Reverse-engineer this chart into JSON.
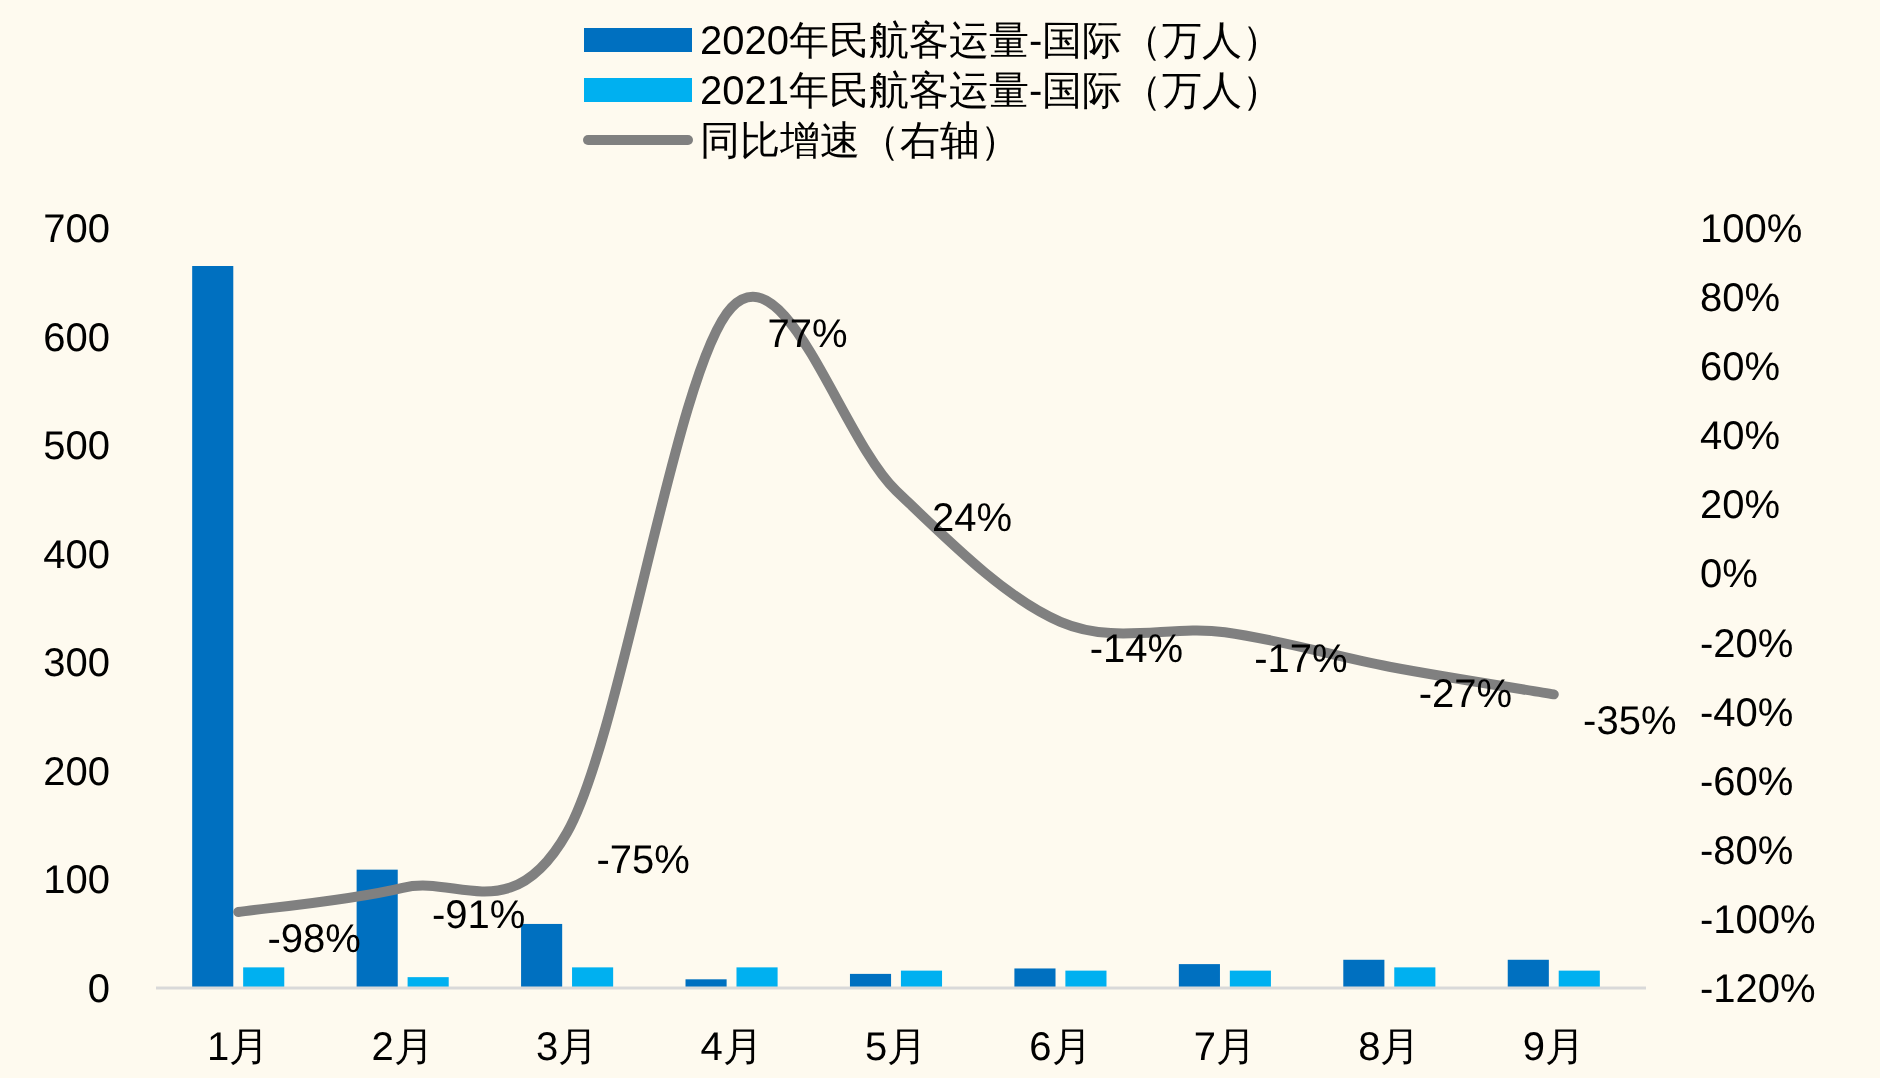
{
  "chart_data": {
    "type": "bar",
    "categories": [
      "1月",
      "2月",
      "3月",
      "4月",
      "5月",
      "6月",
      "7月",
      "8月",
      "9月"
    ],
    "series": [
      {
        "name": "2020年民航客运量-国际（万人）",
        "color": "#0070c0",
        "values": [
          665,
          109,
          59,
          8,
          13,
          18,
          22,
          26,
          26
        ]
      },
      {
        "name": "2021年民航客运量-国际（万人）",
        "color": "#00b0f0",
        "values": [
          19,
          10,
          19,
          19,
          16,
          16,
          16,
          19,
          16
        ]
      },
      {
        "name": "同比增速（右轴）",
        "type": "line",
        "axis": "y2",
        "color": "#808080",
        "values": [
          -98,
          -91,
          -75,
          77,
          24,
          -14,
          -17,
          -27,
          -35
        ],
        "value_labels": [
          "-98%",
          "-91%",
          "-75%",
          "77%",
          "24%",
          "-14%",
          "-17%",
          "-27%",
          "-35%"
        ]
      }
    ],
    "ylim": [
      0,
      700
    ],
    "yticks": [
      0,
      100,
      200,
      300,
      400,
      500,
      600,
      700
    ],
    "y2lim": [
      -120,
      100
    ],
    "y2ticks": [
      {
        "value": -120,
        "label": "-120%"
      },
      {
        "value": -100,
        "label": "-100%"
      },
      {
        "value": -80,
        "label": "-80%"
      },
      {
        "value": -60,
        "label": "-60%"
      },
      {
        "value": -40,
        "label": "-40%"
      },
      {
        "value": -20,
        "label": "-20%"
      },
      {
        "value": 0,
        "label": "0%"
      },
      {
        "value": 20,
        "label": "20%"
      },
      {
        "value": 40,
        "label": "40%"
      },
      {
        "value": 60,
        "label": "60%"
      },
      {
        "value": 80,
        "label": "80%"
      },
      {
        "value": 100,
        "label": "100%"
      }
    ],
    "grid": false,
    "legend": "top",
    "marker": "none",
    "line_style": "solid"
  }
}
